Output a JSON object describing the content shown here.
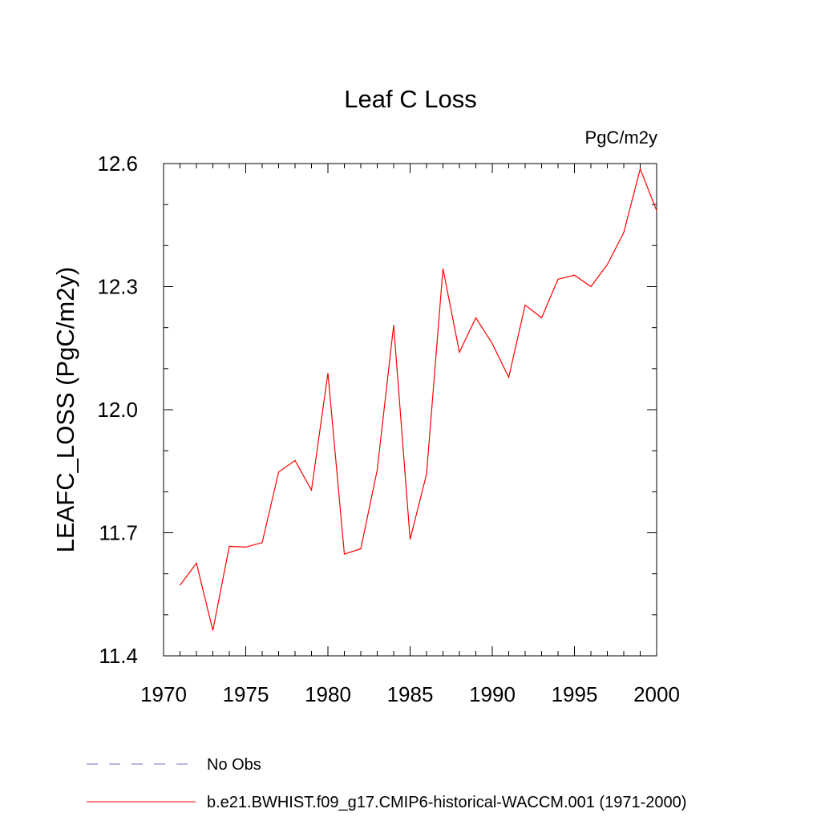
{
  "chart_data": {
    "type": "line",
    "title": "Leaf C Loss",
    "units_label": "PgC/m2y",
    "xlabel": "",
    "ylabel": "LEAFC_LOSS  (PgC/m2y)",
    "xlim": [
      1970,
      2000
    ],
    "ylim": [
      11.4,
      12.6
    ],
    "x_ticks": [
      1970,
      1975,
      1980,
      1985,
      1990,
      1995,
      2000
    ],
    "y_ticks": [
      "11.4",
      "11.7",
      "12.0",
      "12.3",
      "12.6"
    ],
    "y_minor_step": 0.1,
    "x_minor_step": 1,
    "grid": false,
    "legend_placement": "bottom-left, below plot",
    "series": [
      {
        "name": "b.e21.BWHIST.f09_g17.CMIP6-historical-WACCM.001 (1971-2000)",
        "color": "#ff0000",
        "style": "solid",
        "x": [
          1971,
          1972,
          1973,
          1974,
          1975,
          1976,
          1977,
          1978,
          1979,
          1980,
          1981,
          1982,
          1983,
          1984,
          1985,
          1986,
          1987,
          1988,
          1989,
          1990,
          1991,
          1992,
          1993,
          1994,
          1995,
          1996,
          1997,
          1998,
          1999,
          2000
        ],
        "y": [
          11.572,
          11.626,
          11.462,
          11.667,
          11.665,
          11.676,
          11.848,
          11.876,
          11.804,
          12.089,
          11.648,
          11.661,
          11.853,
          12.206,
          11.684,
          11.843,
          12.344,
          12.14,
          12.224,
          12.161,
          12.079,
          12.255,
          12.224,
          12.318,
          12.328,
          12.3,
          12.354,
          12.432,
          12.587,
          12.485
        ]
      }
    ],
    "legend": [
      {
        "label": "No Obs",
        "color": "#7b68c8",
        "style": "dashed"
      },
      {
        "label": "b.e21.BWHIST.f09_g17.CMIP6-historical-WACCM.001 (1971-2000)",
        "color": "#ff0000",
        "style": "solid"
      }
    ]
  }
}
